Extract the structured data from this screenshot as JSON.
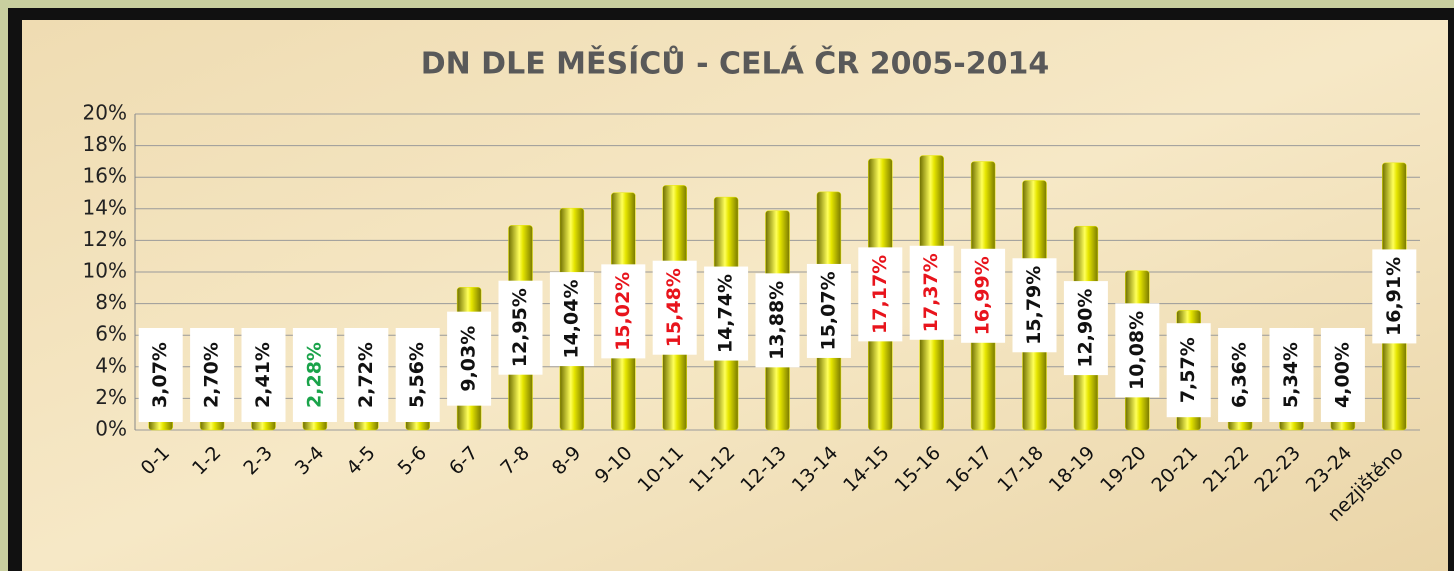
{
  "chart_data": {
    "type": "bar",
    "title": "DN DLE MĚSÍCŮ - CELÁ ČR 2005-2014",
    "categories": [
      "0-1",
      "1-2",
      "2-3",
      "3-4",
      "4-5",
      "5-6",
      "6-7",
      "7-8",
      "8-9",
      "9-10",
      "10-11",
      "11-12",
      "12-13",
      "13-14",
      "14-15",
      "15-16",
      "16-17",
      "17-18",
      "18-19",
      "19-20",
      "20-21",
      "21-22",
      "22-23",
      "23-24",
      "nezjištěno"
    ],
    "values": [
      3.07,
      2.7,
      2.41,
      2.28,
      2.72,
      5.56,
      9.03,
      12.95,
      14.04,
      15.02,
      15.48,
      14.74,
      13.88,
      15.07,
      17.17,
      17.37,
      16.99,
      15.79,
      12.9,
      10.08,
      7.57,
      6.36,
      5.34,
      4.0,
      16.91
    ],
    "value_labels": [
      "3,07%",
      "2,70%",
      "2,41%",
      "2,28%",
      "2,72%",
      "5,56%",
      "9,03%",
      "12,95%",
      "14,04%",
      "15,02%",
      "15,48%",
      "14,74%",
      "13,88%",
      "15,07%",
      "17,17%",
      "17,37%",
      "16,99%",
      "15,79%",
      "12,90%",
      "10,08%",
      "7,57%",
      "6,36%",
      "5,34%",
      "4,00%",
      "16,91%"
    ],
    "value_label_colors": [
      "#111",
      "#111",
      "#111",
      "#1aa34a",
      "#111",
      "#111",
      "#111",
      "#111",
      "#111",
      "#e8141c",
      "#e8141c",
      "#111",
      "#111",
      "#111",
      "#e8141c",
      "#e8141c",
      "#e8141c",
      "#111",
      "#111",
      "#111",
      "#111",
      "#111",
      "#111",
      "#111",
      "#111"
    ],
    "color": "#e6e600",
    "ylim": [
      0,
      20
    ],
    "yticks": [
      {
        "value": 0,
        "label": "0%"
      },
      {
        "value": 2,
        "label": "2%"
      },
      {
        "value": 4,
        "label": "4%"
      },
      {
        "value": 6,
        "label": "6%"
      },
      {
        "value": 8,
        "label": "8%"
      },
      {
        "value": 10,
        "label": "10%"
      },
      {
        "value": 12,
        "label": "12%"
      },
      {
        "value": 14,
        "label": "14%"
      },
      {
        "value": 16,
        "label": "16%"
      },
      {
        "value": 18,
        "label": "18%"
      },
      {
        "value": 20,
        "label": "20%"
      }
    ],
    "grid": true
  }
}
